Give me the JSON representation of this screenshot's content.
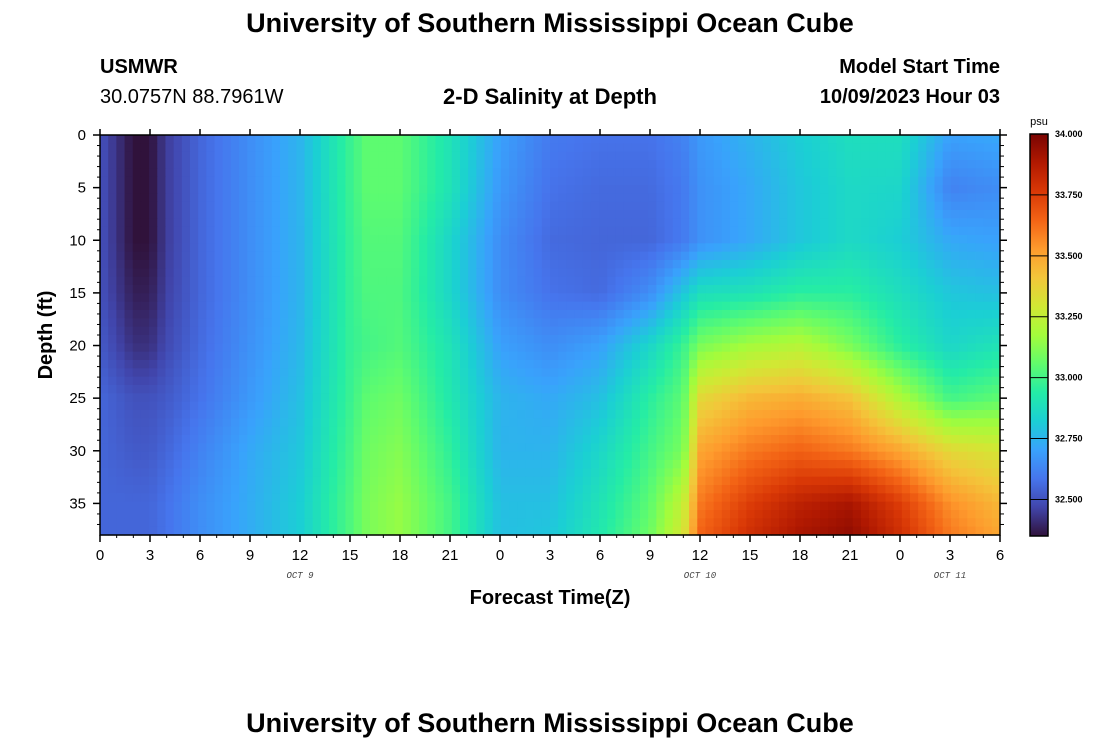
{
  "header": {
    "title_top": "University of Southern Mississippi Ocean Cube",
    "title_bottom": "University of Southern Mississippi Ocean Cube",
    "station": "USMWR",
    "coords": "30.0757N  88.7961W",
    "plot_title": "2-D Salinity at Depth",
    "model_start_label": "Model Start Time",
    "model_start_value": "10/09/2023 Hour 03"
  },
  "chart_data": {
    "type": "heatmap",
    "title": "2-D Salinity at Depth",
    "xlabel": "Forecast Time(Z)",
    "ylabel": "Depth (ft)",
    "x_tick_labels": [
      "0",
      "3",
      "6",
      "9",
      "12",
      "15",
      "18",
      "21",
      "0",
      "3",
      "6",
      "9",
      "12",
      "15",
      "18",
      "21",
      "0",
      "3",
      "6"
    ],
    "x_range_hours": [
      0,
      54
    ],
    "date_labels": [
      {
        "label": "OCT 9",
        "hour": 12
      },
      {
        "label": "OCT 10",
        "hour": 36
      },
      {
        "label": "OCT 11",
        "hour": 51
      }
    ],
    "y_tick_labels": [
      "0",
      "5",
      "10",
      "15",
      "20",
      "25",
      "30",
      "35"
    ],
    "y_range_ft": [
      0,
      38
    ],
    "colorbar": {
      "unit": "psu",
      "min": 32.35,
      "max": 34.0,
      "tick_labels": [
        "34.000",
        "33.750",
        "33.500",
        "33.250",
        "33.000",
        "32.750",
        "32.500"
      ],
      "tick_values": [
        34.0,
        33.75,
        33.5,
        33.25,
        33.0,
        32.75,
        32.5
      ],
      "colormap": [
        "#30123b",
        "#4145ab",
        "#4675ed",
        "#39a2fc",
        "#1bcfd4",
        "#24eca6",
        "#61fc6c",
        "#a4fc3b",
        "#d1e834",
        "#f3c63a",
        "#fe9b2d",
        "#f36315",
        "#d93806",
        "#b11901",
        "#7a0402"
      ]
    },
    "salinity_psu": {
      "depths_ft": [
        0,
        5,
        10,
        15,
        20,
        25,
        30,
        35,
        38
      ],
      "hours": [
        0,
        2,
        3,
        4,
        6,
        9,
        12,
        15,
        16,
        18,
        21,
        24,
        27,
        30,
        33,
        35,
        36,
        39,
        42,
        45,
        48,
        51,
        54
      ],
      "values": [
        [
          32.5,
          32.35,
          32.35,
          32.45,
          32.55,
          32.65,
          32.75,
          32.98,
          33.05,
          33.05,
          32.9,
          32.7,
          32.6,
          32.58,
          32.58,
          32.62,
          32.68,
          32.75,
          32.82,
          32.88,
          32.88,
          32.7,
          32.72
        ],
        [
          32.5,
          32.35,
          32.35,
          32.45,
          32.55,
          32.65,
          32.75,
          32.98,
          33.05,
          33.05,
          32.9,
          32.68,
          32.58,
          32.56,
          32.56,
          32.6,
          32.66,
          32.72,
          32.8,
          32.86,
          32.85,
          32.62,
          32.65
        ],
        [
          32.5,
          32.35,
          32.35,
          32.45,
          32.55,
          32.65,
          32.75,
          32.97,
          33.03,
          33.03,
          32.85,
          32.65,
          32.56,
          32.55,
          32.55,
          32.6,
          32.66,
          32.72,
          32.8,
          32.86,
          32.82,
          32.72,
          32.7
        ],
        [
          32.5,
          32.38,
          32.38,
          32.46,
          32.55,
          32.65,
          32.75,
          32.97,
          33.02,
          33.02,
          32.85,
          32.65,
          32.58,
          32.56,
          32.65,
          32.8,
          32.88,
          32.9,
          32.95,
          32.95,
          32.88,
          32.8,
          32.78
        ],
        [
          32.52,
          32.42,
          32.42,
          32.48,
          32.56,
          32.66,
          32.76,
          32.97,
          33.0,
          33.03,
          32.9,
          32.7,
          32.65,
          32.7,
          32.85,
          32.98,
          33.1,
          33.18,
          33.22,
          33.1,
          32.95,
          32.85,
          32.9
        ],
        [
          32.55,
          32.5,
          32.5,
          32.52,
          32.58,
          32.68,
          32.78,
          32.98,
          33.05,
          33.08,
          32.92,
          32.75,
          32.72,
          32.78,
          32.95,
          33.05,
          33.35,
          33.45,
          33.48,
          33.42,
          33.2,
          33.0,
          33.05
        ],
        [
          32.55,
          32.52,
          32.52,
          32.55,
          32.62,
          32.72,
          32.8,
          33.0,
          33.08,
          33.12,
          32.96,
          32.75,
          32.75,
          32.85,
          33.0,
          33.1,
          33.5,
          33.6,
          33.65,
          33.6,
          33.5,
          33.35,
          33.3
        ],
        [
          32.55,
          32.55,
          32.55,
          32.58,
          32.65,
          32.73,
          32.82,
          33.02,
          33.1,
          33.15,
          33.0,
          32.78,
          32.78,
          32.9,
          33.05,
          33.25,
          33.6,
          33.75,
          33.85,
          33.9,
          33.75,
          33.55,
          33.45
        ],
        [
          32.55,
          32.55,
          32.55,
          32.58,
          32.65,
          32.73,
          32.82,
          33.02,
          33.1,
          33.15,
          33.0,
          32.78,
          32.8,
          32.92,
          33.08,
          33.3,
          33.65,
          33.8,
          33.9,
          33.95,
          33.8,
          33.6,
          33.5
        ]
      ]
    }
  }
}
